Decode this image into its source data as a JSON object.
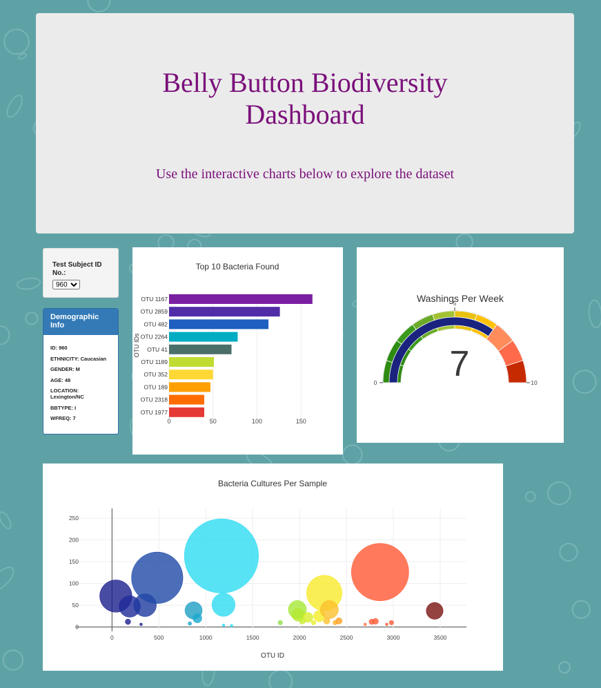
{
  "header": {
    "title": "Belly Button Biodiversity Dashboard",
    "subtitle": "Use the interactive charts below to explore the dataset"
  },
  "selector": {
    "label": "Test Subject ID No.:",
    "selected": "960"
  },
  "demographics": {
    "heading": "Demographic Info",
    "lines": [
      "ID: 960",
      "ETHNICITY: Caucasian",
      "GENDER: M",
      "AGE: 48",
      "LOCATION: Lexington/NC",
      "BBTYPE: I",
      "WFREQ: 7"
    ]
  },
  "colors": {
    "background": "#5fa2a6",
    "title": "#7a0f7a",
    "panel_head": "#337ab7"
  },
  "chart_data": [
    {
      "type": "bar",
      "orientation": "horizontal",
      "title": "Top 10 Bacteria Found",
      "ylabel": "OTU IDs",
      "xlabel": "",
      "categories": [
        "OTU 1167",
        "OTU 2859",
        "OTU 482",
        "OTU 2264",
        "OTU 41",
        "OTU 1189",
        "OTU 352",
        "OTU 189",
        "OTU 2318",
        "OTU 1977"
      ],
      "values": [
        163,
        126,
        113,
        78,
        71,
        51,
        50,
        47,
        40,
        40
      ],
      "colors": [
        "#7b1fa2",
        "#512da8",
        "#1e5fbf",
        "#00acc1",
        "#4a6e6a",
        "#c0dc32",
        "#fdd835",
        "#ffa000",
        "#ff6d00",
        "#e53935"
      ],
      "xticks": [
        0,
        50,
        100,
        150
      ],
      "xlim": [
        0,
        171
      ]
    },
    {
      "type": "gauge",
      "title": "Washings Per Week",
      "value": 7,
      "range": [
        0,
        10
      ],
      "ticks": [
        0,
        5,
        10
      ],
      "step_colors": [
        "#2e8b12",
        "#2e8b12",
        "#3a9a1c",
        "#6aaa28",
        "#a2c234",
        "#e8c20f",
        "#ffc107",
        "#ff8c5a",
        "#ff6a4a",
        "#c62a00"
      ]
    },
    {
      "type": "scatter",
      "title": "Bacteria Cultures Per Sample",
      "xlabel": "OTU ID",
      "ylabel": "",
      "xlim": [
        -385,
        3780
      ],
      "ylim": [
        -10,
        288
      ],
      "xticks": [
        0,
        500,
        1000,
        1500,
        2000,
        2500,
        3000,
        3500
      ],
      "yticks": [
        0,
        50,
        100,
        150,
        200,
        250
      ],
      "points": [
        {
          "x": 41,
          "y": 71,
          "size": 71,
          "color": "#1a1f8c"
        },
        {
          "x": 189,
          "y": 47,
          "size": 47,
          "color": "#1f2a9a"
        },
        {
          "x": 352,
          "y": 50,
          "size": 50,
          "color": "#1e3a9f"
        },
        {
          "x": 482,
          "y": 113,
          "size": 113,
          "color": "#1f4aa8"
        },
        {
          "x": 170,
          "y": 12,
          "size": 12,
          "color": "#1a1f8c"
        },
        {
          "x": 310,
          "y": 6,
          "size": 6,
          "color": "#1a1f8c"
        },
        {
          "x": 870,
          "y": 38,
          "size": 38,
          "color": "#1e9fc4"
        },
        {
          "x": 910,
          "y": 20,
          "size": 20,
          "color": "#1aa8d0"
        },
        {
          "x": 830,
          "y": 8,
          "size": 8,
          "color": "#1aa8d0"
        },
        {
          "x": 1167,
          "y": 163,
          "size": 163,
          "color": "#2edcf2"
        },
        {
          "x": 1189,
          "y": 51,
          "size": 51,
          "color": "#2edcf2"
        },
        {
          "x": 1190,
          "y": 4,
          "size": 4,
          "color": "#2edcf2"
        },
        {
          "x": 1275,
          "y": 3,
          "size": 3,
          "color": "#2edcf2"
        },
        {
          "x": 1795,
          "y": 10,
          "size": 10,
          "color": "#8ee04a"
        },
        {
          "x": 1977,
          "y": 40,
          "size": 40,
          "color": "#a8e838"
        },
        {
          "x": 1985,
          "y": 28,
          "size": 28,
          "color": "#b4e830"
        },
        {
          "x": 2030,
          "y": 14,
          "size": 14,
          "color": "#c4ec30"
        },
        {
          "x": 2090,
          "y": 22,
          "size": 22,
          "color": "#d8ee2c"
        },
        {
          "x": 2150,
          "y": 10,
          "size": 10,
          "color": "#e6ef2a"
        },
        {
          "x": 2210,
          "y": 25,
          "size": 25,
          "color": "#f2ee28"
        },
        {
          "x": 2264,
          "y": 78,
          "size": 78,
          "color": "#f7ea2a"
        },
        {
          "x": 2318,
          "y": 40,
          "size": 40,
          "color": "#fbc02d"
        },
        {
          "x": 2290,
          "y": 14,
          "size": 14,
          "color": "#fbc02d"
        },
        {
          "x": 2380,
          "y": 10,
          "size": 10,
          "color": "#ffb020"
        },
        {
          "x": 2420,
          "y": 14,
          "size": 14,
          "color": "#ffa020"
        },
        {
          "x": 2700,
          "y": 6,
          "size": 6,
          "color": "#ff7040"
        },
        {
          "x": 2770,
          "y": 12,
          "size": 12,
          "color": "#ff5a36"
        },
        {
          "x": 2810,
          "y": 13,
          "size": 13,
          "color": "#ff5a36"
        },
        {
          "x": 2930,
          "y": 6,
          "size": 6,
          "color": "#ff5a36"
        },
        {
          "x": 2980,
          "y": 10,
          "size": 10,
          "color": "#ff5a36"
        },
        {
          "x": 2859,
          "y": 126,
          "size": 126,
          "color": "#ff5733"
        },
        {
          "x": 3441,
          "y": 37,
          "size": 37,
          "color": "#7a1412"
        }
      ]
    }
  ]
}
